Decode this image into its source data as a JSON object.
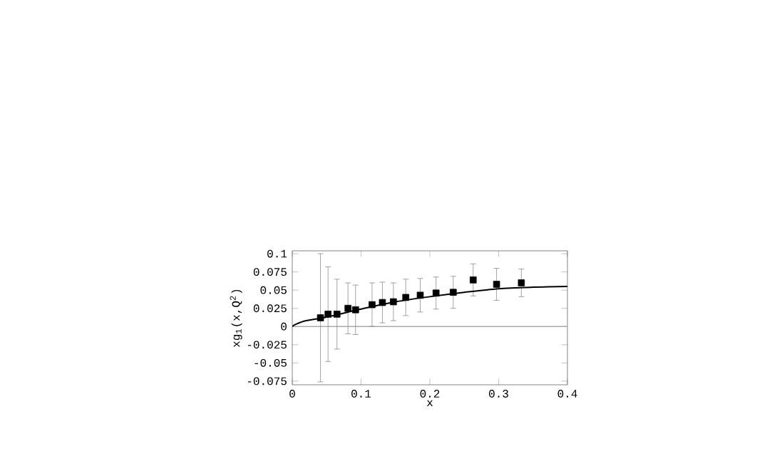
{
  "chart_data": {
    "type": "scatter",
    "xlabel": "x",
    "ylabel": "xg$_{1}$(x,Q$^{2}$)",
    "xlim": [
      0,
      0.4
    ],
    "ylim": [
      -0.08,
      0.104
    ],
    "xticks": [
      0,
      0.1,
      0.2,
      0.3,
      0.4
    ],
    "yticks": [
      -0.075,
      -0.05,
      -0.025,
      0,
      0.025,
      0.05,
      0.075,
      0.1
    ],
    "grid": false,
    "series": [
      {
        "color": "#000000",
        "marker": "square",
        "x": [
          0.041,
          0.052,
          0.065,
          0.081,
          0.092,
          0.116,
          0.131,
          0.147,
          0.165,
          0.186,
          0.209,
          0.234,
          0.263,
          0.297,
          0.333
        ],
        "values": [
          0.012,
          0.017,
          0.017,
          0.025,
          0.023,
          0.03,
          0.033,
          0.034,
          0.04,
          0.043,
          0.046,
          0.047,
          0.064,
          0.058,
          0.06
        ],
        "errors": [
          0.088,
          0.065,
          0.048,
          0.035,
          0.034,
          0.03,
          0.028,
          0.026,
          0.025,
          0.023,
          0.022,
          0.022,
          0.022,
          0.022,
          0.019
        ]
      },
      {
        "type": "line",
        "color": "#000000",
        "marker": "none",
        "line_style": "solid",
        "x": [
          0,
          0.005,
          0.02,
          0.05,
          0.1,
          0.15,
          0.2,
          0.25,
          0.3,
          0.35,
          0.4
        ],
        "values": [
          0,
          0.003,
          0.008,
          0.013,
          0.024,
          0.034,
          0.041,
          0.047,
          0.052,
          0.054,
          0.055
        ]
      }
    ],
    "ref_lines": [
      {
        "axis": "y",
        "value": 0,
        "color": "#aaaaaa"
      }
    ]
  }
}
